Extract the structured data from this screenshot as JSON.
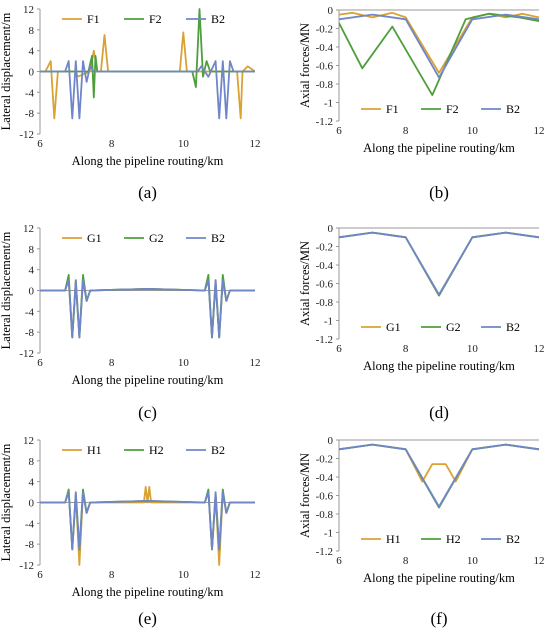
{
  "colors": {
    "orange": "#d9a233",
    "green": "#4f9e3c",
    "blue": "#6f86c8"
  },
  "chart_data": [
    {
      "id": "a",
      "type": "line",
      "panel_label": "(a)",
      "xlabel": "Along the pipeline routing/km",
      "ylabel": "Lateral displacement/m",
      "xlim": [
        6,
        12
      ],
      "ylim": [
        -12,
        12
      ],
      "xticks": [
        "6",
        "8",
        "10",
        "12"
      ],
      "yticks": [
        "12",
        "8",
        "4",
        "0",
        "-4",
        "-8",
        "-12"
      ],
      "legend": "top",
      "series": [
        {
          "name": "F1",
          "color": "orange",
          "x": [
            6.0,
            6.15,
            6.3,
            6.4,
            6.5,
            6.6,
            7.0,
            7.05,
            7.4,
            7.5,
            7.6,
            7.7,
            7.8,
            7.9,
            8.0,
            8.1,
            9.9,
            10.0,
            10.1,
            11.5,
            11.6,
            11.65,
            11.8,
            12.0
          ],
          "y": [
            0,
            0,
            2,
            -9,
            0,
            0,
            0,
            -1,
            0,
            4,
            0,
            0,
            7,
            0,
            0,
            0,
            0,
            7.5,
            0,
            0,
            -9,
            0,
            1,
            0
          ]
        },
        {
          "name": "F2",
          "color": "green",
          "x": [
            6.0,
            7.35,
            7.45,
            7.5,
            7.55,
            7.6,
            7.7,
            10.25,
            10.35,
            10.45,
            10.55,
            10.65,
            10.75,
            12.0
          ],
          "y": [
            0,
            0,
            3,
            -5,
            3,
            0,
            0,
            0,
            -3,
            12,
            -1,
            2,
            0,
            0
          ]
        },
        {
          "name": "B2",
          "color": "blue",
          "x": [
            6.0,
            6.7,
            6.8,
            6.9,
            7.0,
            7.1,
            7.2,
            7.3,
            7.4,
            7.5,
            8.0,
            10.4,
            10.5,
            10.7,
            10.9,
            11.0,
            11.1,
            11.2,
            11.3,
            11.4,
            12.0
          ],
          "y": [
            0,
            0,
            2,
            -9,
            2,
            -9,
            2,
            -2,
            1,
            0,
            0,
            0,
            1,
            -1,
            2,
            -9,
            2,
            -9,
            2,
            0,
            0
          ]
        }
      ]
    },
    {
      "id": "b",
      "type": "line",
      "panel_label": "(b)",
      "xlabel": "Along the pipeline routing/km",
      "ylabel": "Axial forces/MN",
      "xlim": [
        6,
        12
      ],
      "ylim": [
        -1.2,
        0
      ],
      "xticks": [
        "6",
        "8",
        "10",
        "12"
      ],
      "yticks": [
        "0",
        "-0.2",
        "-0.4",
        "-0.6",
        "-0.8",
        "-1",
        "-1.2"
      ],
      "legend": "bottom",
      "series": [
        {
          "name": "F1",
          "color": "orange",
          "x": [
            6.0,
            6.4,
            7.0,
            7.6,
            8.0,
            9.0,
            10.0,
            10.5,
            11.0,
            11.5,
            12.0
          ],
          "y": [
            -0.05,
            -0.03,
            -0.08,
            -0.03,
            -0.08,
            -0.68,
            -0.08,
            -0.04,
            -0.08,
            -0.04,
            -0.08
          ]
        },
        {
          "name": "F2",
          "color": "green",
          "x": [
            6.0,
            6.7,
            7.6,
            8.8,
            9.8,
            10.5,
            11.4,
            12.0
          ],
          "y": [
            -0.14,
            -0.63,
            -0.18,
            -0.92,
            -0.1,
            -0.04,
            -0.08,
            -0.12
          ]
        },
        {
          "name": "B2",
          "color": "blue",
          "x": [
            6.0,
            7.0,
            8.0,
            9.0,
            10.0,
            11.0,
            12.0
          ],
          "y": [
            -0.1,
            -0.05,
            -0.1,
            -0.73,
            -0.1,
            -0.05,
            -0.1
          ]
        }
      ]
    },
    {
      "id": "c",
      "type": "line",
      "panel_label": "(c)",
      "xlabel": "Along the pipeline routing/km",
      "ylabel": "Lateral displacement/m",
      "xlim": [
        6,
        12
      ],
      "ylim": [
        -12,
        12
      ],
      "xticks": [
        "6",
        "8",
        "10",
        "12"
      ],
      "yticks": [
        "12",
        "8",
        "4",
        "0",
        "-4",
        "-8",
        "-12"
      ],
      "legend": "top",
      "series": [
        {
          "name": "G1",
          "color": "orange",
          "x": [
            6.0,
            6.7,
            6.8,
            6.9,
            7.0,
            7.1,
            7.2,
            7.3,
            7.4,
            9.0,
            10.6,
            10.7,
            10.8,
            10.9,
            11.0,
            11.1,
            11.2,
            11.3,
            12.0
          ],
          "y": [
            0,
            0,
            2,
            -9,
            2,
            -9,
            2,
            -2,
            0,
            0.3,
            0,
            2,
            -9,
            2,
            -9,
            2,
            -2,
            0,
            0
          ]
        },
        {
          "name": "G2",
          "color": "green",
          "x": [
            6.0,
            6.7,
            6.8,
            6.9,
            7.0,
            7.1,
            7.2,
            7.3,
            7.4,
            9.0,
            10.6,
            10.7,
            10.8,
            10.9,
            11.0,
            11.1,
            11.2,
            11.3,
            12.0
          ],
          "y": [
            0,
            0,
            3,
            -9,
            1.5,
            -9,
            3,
            -2,
            0,
            0.3,
            0,
            3,
            -9,
            1.5,
            -9,
            3,
            -2,
            0,
            0
          ]
        },
        {
          "name": "B2",
          "color": "blue",
          "x": [
            6.0,
            6.7,
            6.8,
            6.9,
            7.0,
            7.1,
            7.2,
            7.3,
            7.4,
            9.0,
            10.6,
            10.7,
            10.8,
            10.9,
            11.0,
            11.1,
            11.2,
            11.3,
            12.0
          ],
          "y": [
            0,
            0,
            2,
            -9,
            2,
            -9,
            2,
            -2,
            0,
            0.3,
            0,
            2,
            -9,
            2,
            -9,
            2,
            -2,
            0,
            0
          ]
        }
      ]
    },
    {
      "id": "d",
      "type": "line",
      "panel_label": "(d)",
      "xlabel": "Along the pipeline routing/km",
      "ylabel": "Axial forces/MN",
      "xlim": [
        6,
        12
      ],
      "ylim": [
        -1.2,
        0
      ],
      "xticks": [
        "6",
        "8",
        "10",
        "12"
      ],
      "yticks": [
        "0",
        "-0.2",
        "-0.4",
        "-0.6",
        "-0.8",
        "-1",
        "-1.2"
      ],
      "legend": "bottom",
      "series": [
        {
          "name": "G1",
          "color": "orange",
          "x": [
            6.0,
            7.0,
            8.0,
            9.0,
            10.0,
            11.0,
            12.0
          ],
          "y": [
            -0.1,
            -0.05,
            -0.1,
            -0.73,
            -0.1,
            -0.05,
            -0.1
          ]
        },
        {
          "name": "G2",
          "color": "green",
          "x": [
            6.0,
            7.0,
            8.0,
            9.0,
            10.0,
            11.0,
            12.0
          ],
          "y": [
            -0.1,
            -0.05,
            -0.1,
            -0.73,
            -0.1,
            -0.05,
            -0.1
          ]
        },
        {
          "name": "B2",
          "color": "blue",
          "x": [
            6.0,
            7.0,
            8.0,
            9.0,
            10.0,
            11.0,
            12.0
          ],
          "y": [
            -0.1,
            -0.05,
            -0.1,
            -0.72,
            -0.1,
            -0.05,
            -0.1
          ]
        }
      ]
    },
    {
      "id": "e",
      "type": "line",
      "panel_label": "(e)",
      "xlabel": "Along the pipeline routing/km",
      "ylabel": "Lateral displacement/m",
      "xlim": [
        6,
        12
      ],
      "ylim": [
        -12,
        12
      ],
      "xticks": [
        "6",
        "8",
        "10",
        "12"
      ],
      "yticks": [
        "12",
        "8",
        "4",
        "0",
        "-4",
        "-8",
        "-12"
      ],
      "legend": "top",
      "series": [
        {
          "name": "H1",
          "color": "orange",
          "x": [
            6.0,
            6.7,
            6.8,
            6.9,
            7.0,
            7.1,
            7.2,
            7.3,
            7.4,
            8.9,
            8.95,
            9.0,
            9.05,
            9.1,
            9.15,
            10.6,
            10.7,
            10.8,
            10.9,
            11.0,
            11.1,
            11.2,
            11.3,
            12.0
          ],
          "y": [
            0,
            0,
            2,
            -9,
            1.5,
            -12,
            2,
            -2,
            0,
            0,
            3,
            0,
            3,
            0,
            0,
            0,
            2,
            -9,
            1.5,
            -12,
            2,
            -2,
            0,
            0
          ]
        },
        {
          "name": "H2",
          "color": "green",
          "x": [
            6.0,
            6.7,
            6.8,
            6.9,
            7.0,
            7.1,
            7.2,
            7.3,
            7.4,
            9.0,
            10.6,
            10.7,
            10.8,
            10.9,
            11.0,
            11.1,
            11.2,
            11.3,
            12.0
          ],
          "y": [
            0,
            0,
            2.5,
            -9,
            1.5,
            -9,
            2.5,
            -2,
            0,
            0.3,
            0,
            2.5,
            -9,
            1.5,
            -9,
            2.5,
            -2,
            0,
            0
          ]
        },
        {
          "name": "B2",
          "color": "blue",
          "x": [
            6.0,
            6.7,
            6.8,
            6.9,
            7.0,
            7.1,
            7.2,
            7.3,
            7.4,
            9.0,
            10.6,
            10.7,
            10.8,
            10.9,
            11.0,
            11.1,
            11.2,
            11.3,
            12.0
          ],
          "y": [
            0,
            0,
            2,
            -9,
            2,
            -9,
            2,
            -2,
            0,
            0.3,
            0,
            2,
            -9,
            2,
            -9,
            2,
            -2,
            0,
            0
          ]
        }
      ]
    },
    {
      "id": "f",
      "type": "line",
      "panel_label": "(f)",
      "xlabel": "Along the pipeline routing/km",
      "ylabel": "Axial forces/MN",
      "xlim": [
        6,
        12
      ],
      "ylim": [
        -1.2,
        0
      ],
      "xticks": [
        "6",
        "8",
        "10",
        "12"
      ],
      "yticks": [
        "0",
        "-0.2",
        "-0.4",
        "-0.6",
        "-0.8",
        "-1",
        "-1.2"
      ],
      "legend": "bottom",
      "series": [
        {
          "name": "H1",
          "color": "orange",
          "x": [
            6.0,
            7.0,
            8.0,
            8.5,
            8.8,
            9.2,
            9.5,
            10.0,
            11.0,
            12.0
          ],
          "y": [
            -0.1,
            -0.05,
            -0.1,
            -0.45,
            -0.26,
            -0.26,
            -0.45,
            -0.1,
            -0.05,
            -0.1
          ]
        },
        {
          "name": "H2",
          "color": "green",
          "x": [
            6.0,
            7.0,
            8.0,
            9.0,
            10.0,
            11.0,
            12.0
          ],
          "y": [
            -0.1,
            -0.05,
            -0.1,
            -0.73,
            -0.1,
            -0.05,
            -0.1
          ]
        },
        {
          "name": "B2",
          "color": "blue",
          "x": [
            6.0,
            7.0,
            8.0,
            9.0,
            10.0,
            11.0,
            12.0
          ],
          "y": [
            -0.1,
            -0.05,
            -0.1,
            -0.72,
            -0.1,
            -0.05,
            -0.1
          ]
        }
      ]
    }
  ]
}
